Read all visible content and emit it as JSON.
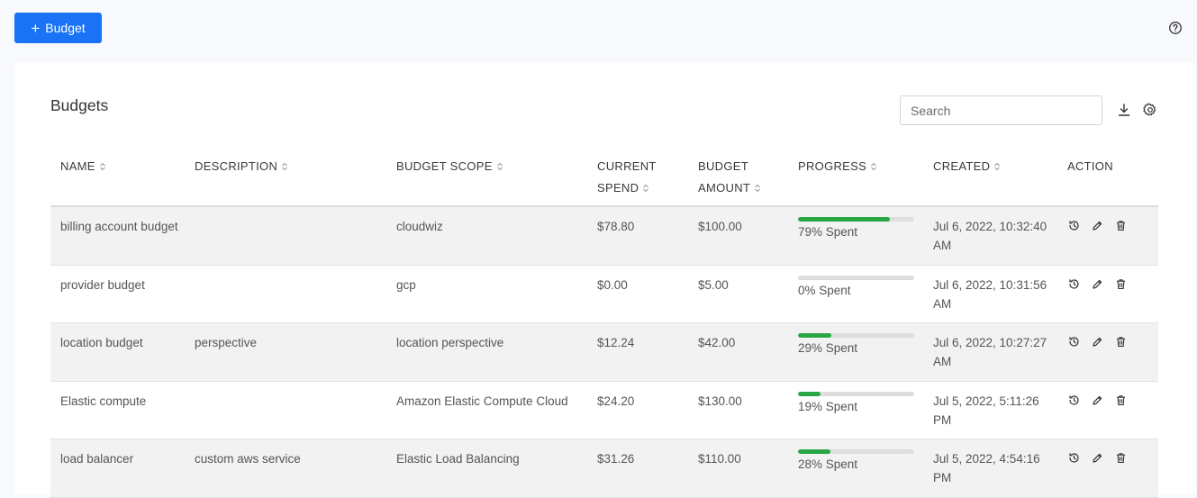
{
  "toolbar": {
    "add_label": "Budget",
    "add_icon": "plus-icon",
    "help_icon": "help-circle-icon"
  },
  "card": {
    "title": "Budgets",
    "search_placeholder": "Search",
    "download_icon": "download-icon",
    "settings_icon": "gear-icon"
  },
  "table": {
    "columns": [
      {
        "label": "NAME",
        "sortable": true
      },
      {
        "label": "DESCRIPTION",
        "sortable": true
      },
      {
        "label": "BUDGET SCOPE",
        "sortable": true
      },
      {
        "label": "CURRENT",
        "label2": "SPEND",
        "sortable": true
      },
      {
        "label": "BUDGET",
        "label2": "AMOUNT",
        "sortable": true
      },
      {
        "label": "PROGRESS",
        "sortable": true
      },
      {
        "label": "CREATED",
        "sortable": true
      },
      {
        "label": "ACTION",
        "sortable": false
      }
    ],
    "rows": [
      {
        "name": "billing account budget",
        "description": "",
        "scope": "cloudwiz",
        "spend": "$78.80",
        "amount": "$100.00",
        "progress": 79,
        "progress_label": "79% Spent",
        "created": "Jul 6, 2022, 10:32:40 AM"
      },
      {
        "name": "provider budget",
        "description": "",
        "scope": "gcp",
        "spend": "$0.00",
        "amount": "$5.00",
        "progress": 0,
        "progress_label": "0% Spent",
        "created": "Jul 6, 2022, 10:31:56 AM"
      },
      {
        "name": "location budget",
        "description": "perspective",
        "scope": "location perspective",
        "spend": "$12.24",
        "amount": "$42.00",
        "progress": 29,
        "progress_label": "29% Spent",
        "created": "Jul 6, 2022, 10:27:27 AM"
      },
      {
        "name": "Elastic compute",
        "description": "",
        "scope": "Amazon Elastic Compute Cloud",
        "spend": "$24.20",
        "amount": "$130.00",
        "progress": 19,
        "progress_label": "19% Spent",
        "created": "Jul 5, 2022, 5:11:26 PM"
      },
      {
        "name": "load balancer",
        "description": "custom aws service",
        "scope": "Elastic Load Balancing",
        "spend": "$31.26",
        "amount": "$110.00",
        "progress": 28,
        "progress_label": "28% Spent",
        "created": "Jul 5, 2022, 4:54:16 PM"
      }
    ],
    "row_actions": [
      "history-icon",
      "edit-pencil-icon",
      "trash-icon"
    ]
  },
  "colors": {
    "primary": "#1a73f5",
    "progress_fill": "#2aa745",
    "progress_track": "#dedede",
    "alt_row": "#f2f2f2"
  }
}
